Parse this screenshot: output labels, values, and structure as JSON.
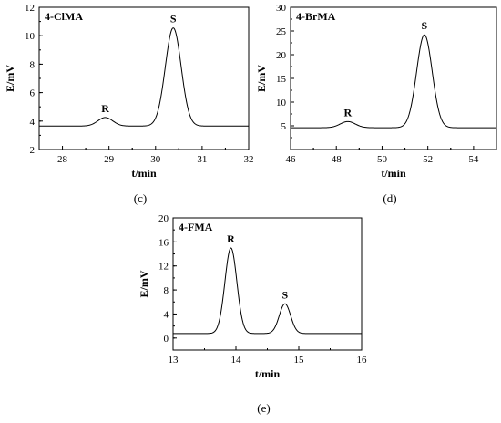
{
  "chart_data": [
    {
      "type": "line",
      "title": "4-ClMA",
      "caption": "(c)",
      "xlabel": "t/min",
      "ylabel": "E/mV",
      "xlim": [
        27.5,
        32
      ],
      "ylim": [
        2,
        12
      ],
      "xticks": [
        "28",
        "29",
        "30",
        "31",
        "32"
      ],
      "yticks": [
        "2",
        "4",
        "6",
        "8",
        "10",
        "12"
      ],
      "baseline": 3.65,
      "peaks": [
        {
          "label": "R",
          "x": 28.92,
          "height": 4.25,
          "sigma": 0.16
        },
        {
          "label": "S",
          "x": 30.38,
          "height": 10.55,
          "sigma": 0.17
        }
      ]
    },
    {
      "type": "line",
      "title": "4-BrMA",
      "caption": "(d)",
      "xlabel": "t/min",
      "ylabel": "E/mV",
      "xlim": [
        46,
        55
      ],
      "ylim": [
        0,
        30
      ],
      "xticks": [
        "46",
        "48",
        "50",
        "52",
        "54"
      ],
      "yticks": [
        "5",
        "10",
        "15",
        "20",
        "25",
        "30"
      ],
      "baseline": 4.6,
      "peaks": [
        {
          "label": "R",
          "x": 48.5,
          "height": 5.9,
          "sigma": 0.33
        },
        {
          "label": "S",
          "x": 51.85,
          "height": 24.2,
          "sigma": 0.34
        }
      ]
    },
    {
      "type": "line",
      "title": "4-FMA",
      "caption": "(e)",
      "xlabel": "t/min",
      "ylabel": "E/mV",
      "xlim": [
        13,
        16
      ],
      "ylim": [
        -2,
        20
      ],
      "xticks": [
        "13",
        "14",
        "15",
        "16"
      ],
      "yticks": [
        "0",
        "4",
        "8",
        "12",
        "16",
        "20"
      ],
      "baseline": 0.75,
      "peaks": [
        {
          "label": "R",
          "x": 13.92,
          "height": 15.0,
          "sigma": 0.095
        },
        {
          "label": "S",
          "x": 14.78,
          "height": 5.7,
          "sigma": 0.09
        }
      ]
    }
  ]
}
